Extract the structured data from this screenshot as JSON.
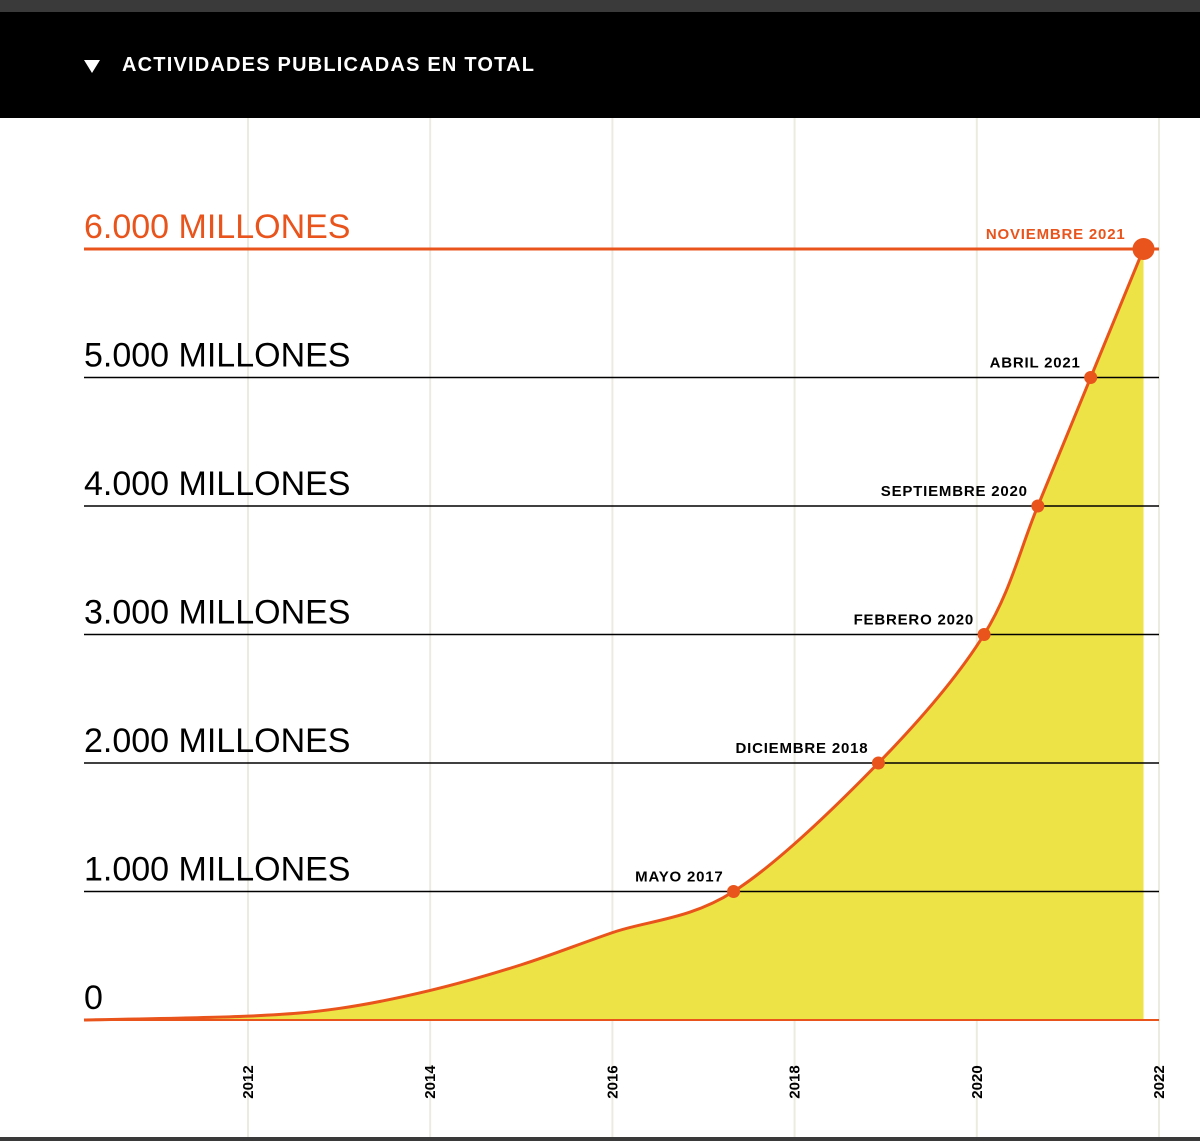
{
  "header": {
    "title": "ACTIVIDADES PUBLICADAS EN TOTAL",
    "toggle_icon": "triangle-down-icon"
  },
  "chart_data": {
    "type": "area",
    "title": "",
    "xlabel": "",
    "ylabel": "",
    "x_ticks": [
      "2012",
      "2014",
      "2016",
      "2018",
      "2020",
      "2022"
    ],
    "y_ticks": [
      "0",
      "1.000 MILLONES",
      "2.000 MILLONES",
      "3.000 MILLONES",
      "4.000 MILLONES",
      "5.000 MILLONES",
      "6.000 MILLONES"
    ],
    "ylim": [
      0,
      6000
    ],
    "xlim": [
      2010.2,
      2022.0
    ],
    "milestones": [
      {
        "label": "MAYO 2017",
        "x": 2017.33,
        "y": 1000
      },
      {
        "label": "DICIEMBRE 2018",
        "x": 2018.92,
        "y": 2000
      },
      {
        "label": "FEBRERO 2020",
        "x": 2020.08,
        "y": 3000
      },
      {
        "label": "SEPTIEMBRE 2020",
        "x": 2020.67,
        "y": 4000
      },
      {
        "label": "ABRIL 2021",
        "x": 2021.25,
        "y": 5000
      },
      {
        "label": "NOVIEMBRE 2021",
        "x": 2021.83,
        "y": 6000
      }
    ],
    "series": [
      {
        "values": [
          [
            2010.2,
            0
          ],
          [
            2012,
            30
          ],
          [
            2013,
            90
          ],
          [
            2014,
            230
          ],
          [
            2015,
            430
          ],
          [
            2016,
            680
          ],
          [
            2017.33,
            1000
          ],
          [
            2018.92,
            2000
          ],
          [
            2020.08,
            3000
          ],
          [
            2020.67,
            4000
          ],
          [
            2021.25,
            5000
          ],
          [
            2021.83,
            6000
          ]
        ]
      }
    ],
    "colors": {
      "fill": "#ede347",
      "line": "#e8541c",
      "highlight_text": "#e8541c",
      "gridline": "#000000",
      "vertical_grid": "#ecebe0"
    }
  }
}
